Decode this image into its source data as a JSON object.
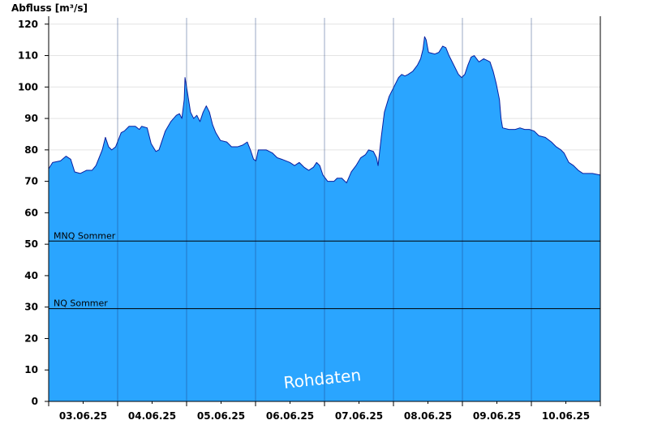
{
  "chart_data": {
    "type": "area",
    "ylabel": "Abfluss [m³/s]",
    "ylim": [
      0,
      120
    ],
    "yticks": [
      0,
      10,
      20,
      30,
      40,
      50,
      60,
      70,
      80,
      90,
      100,
      110,
      120
    ],
    "x_range_days": [
      "02.06.25",
      "10.06.25"
    ],
    "x_tick_labels": [
      "03.06.25",
      "04.06.25",
      "05.06.25",
      "06.06.25",
      "07.06.25",
      "08.06.25",
      "09.06.25",
      "10.06.25"
    ],
    "grid": "horizontal light gray, vertical day separators",
    "fill_color": "#2aa5ff",
    "line_color": "#0a1fa0",
    "watermark": "Rohdaten",
    "reference_lines": [
      {
        "label": "MNQ Sommer",
        "value": 51
      },
      {
        "label": "NQ Sommer",
        "value": 29.5
      }
    ],
    "series": [
      {
        "points": [
          [
            0.0,
            74
          ],
          [
            0.05,
            76
          ],
          [
            0.15,
            76.5
          ],
          [
            0.22,
            78
          ],
          [
            0.28,
            77
          ],
          [
            0.33,
            73
          ],
          [
            0.4,
            72.5
          ],
          [
            0.48,
            73.5
          ],
          [
            0.55,
            73.5
          ],
          [
            0.6,
            75
          ],
          [
            0.68,
            80
          ],
          [
            0.72,
            84
          ],
          [
            0.76,
            81
          ],
          [
            0.8,
            80
          ],
          [
            0.85,
            81
          ],
          [
            0.92,
            85.5
          ],
          [
            0.96,
            86
          ],
          [
            1.02,
            87.5
          ],
          [
            1.1,
            87.5
          ],
          [
            1.15,
            86.5
          ],
          [
            1.18,
            87.5
          ],
          [
            1.25,
            87
          ],
          [
            1.3,
            82
          ],
          [
            1.36,
            79.5
          ],
          [
            1.4,
            80
          ],
          [
            1.48,
            86
          ],
          [
            1.55,
            89
          ],
          [
            1.62,
            91
          ],
          [
            1.66,
            91.5
          ],
          [
            1.69,
            90
          ],
          [
            1.72,
            96
          ],
          [
            1.73,
            103
          ],
          [
            1.75,
            100
          ],
          [
            1.8,
            92
          ],
          [
            1.84,
            90
          ],
          [
            1.88,
            91
          ],
          [
            1.92,
            89
          ],
          [
            1.96,
            92
          ],
          [
            2.0,
            94
          ],
          [
            2.04,
            92
          ],
          [
            2.08,
            88
          ],
          [
            2.12,
            85.5
          ],
          [
            2.18,
            83
          ],
          [
            2.26,
            82.5
          ],
          [
            2.32,
            81
          ],
          [
            2.4,
            81
          ],
          [
            2.46,
            81.5
          ],
          [
            2.52,
            82.5
          ],
          [
            2.56,
            80
          ],
          [
            2.6,
            77
          ],
          [
            2.63,
            76.5
          ],
          [
            2.66,
            80
          ],
          [
            2.76,
            80
          ],
          [
            2.84,
            79
          ],
          [
            2.9,
            77.5
          ],
          [
            2.96,
            77
          ],
          [
            3.06,
            76
          ],
          [
            3.12,
            75
          ],
          [
            3.18,
            76
          ],
          [
            3.24,
            74.5
          ],
          [
            3.3,
            73.5
          ],
          [
            3.36,
            74.5
          ],
          [
            3.4,
            76
          ],
          [
            3.44,
            75
          ],
          [
            3.48,
            72
          ],
          [
            3.54,
            70
          ],
          [
            3.62,
            70
          ],
          [
            3.66,
            71
          ],
          [
            3.72,
            71
          ],
          [
            3.78,
            69.5
          ],
          [
            3.84,
            73
          ],
          [
            3.9,
            75
          ],
          [
            3.96,
            77.5
          ],
          [
            4.02,
            78.5
          ],
          [
            4.06,
            80
          ],
          [
            4.12,
            79.5
          ],
          [
            4.16,
            77.5
          ],
          [
            4.18,
            75
          ],
          [
            4.22,
            84
          ],
          [
            4.26,
            92
          ],
          [
            4.32,
            97
          ],
          [
            4.38,
            100
          ],
          [
            4.44,
            103
          ],
          [
            4.48,
            104
          ],
          [
            4.52,
            103.5
          ],
          [
            4.56,
            104
          ],
          [
            4.62,
            105
          ],
          [
            4.68,
            107
          ],
          [
            4.72,
            109
          ],
          [
            4.75,
            112
          ],
          [
            4.77,
            116
          ],
          [
            4.79,
            115
          ],
          [
            4.82,
            111
          ],
          [
            4.9,
            110.5
          ],
          [
            4.95,
            111
          ],
          [
            5.0,
            113
          ],
          [
            5.04,
            112.5
          ],
          [
            5.08,
            110
          ],
          [
            5.14,
            107
          ],
          [
            5.2,
            104
          ],
          [
            5.24,
            103
          ],
          [
            5.28,
            104
          ],
          [
            5.32,
            107
          ],
          [
            5.36,
            109.5
          ],
          [
            5.4,
            110
          ],
          [
            5.46,
            108
          ],
          [
            5.52,
            109
          ],
          [
            5.56,
            108.5
          ],
          [
            5.6,
            108
          ],
          [
            5.64,
            105
          ],
          [
            5.68,
            101
          ],
          [
            5.72,
            96
          ],
          [
            5.74,
            90
          ],
          [
            5.76,
            87
          ],
          [
            5.84,
            86.5
          ],
          [
            5.92,
            86.5
          ],
          [
            5.98,
            87
          ],
          [
            6.04,
            86.5
          ],
          [
            6.1,
            86.5
          ],
          [
            6.16,
            86
          ],
          [
            6.22,
            84.5
          ],
          [
            6.3,
            84
          ],
          [
            6.38,
            82.5
          ],
          [
            6.44,
            81
          ],
          [
            6.5,
            80
          ],
          [
            6.54,
            79
          ],
          [
            6.6,
            76
          ],
          [
            6.66,
            75
          ],
          [
            6.72,
            73.5
          ],
          [
            6.78,
            72.5
          ],
          [
            6.84,
            72.5
          ],
          [
            6.9,
            72.5
          ],
          [
            7.0,
            72
          ]
        ]
      }
    ]
  }
}
